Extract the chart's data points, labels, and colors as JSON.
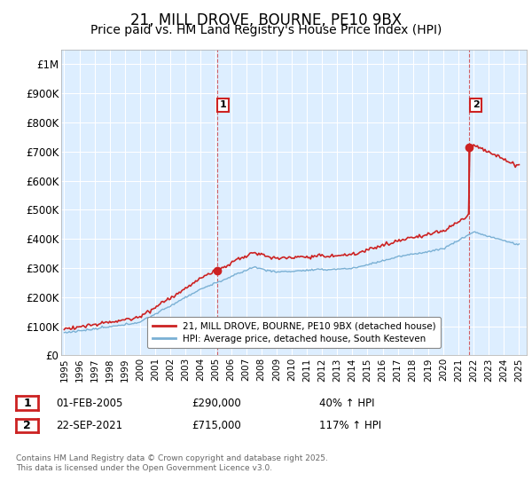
{
  "title": "21, MILL DROVE, BOURNE, PE10 9BX",
  "subtitle": "Price paid vs. HM Land Registry's House Price Index (HPI)",
  "title_fontsize": 12,
  "subtitle_fontsize": 10,
  "ylim": [
    0,
    1050000
  ],
  "yticks": [
    0,
    100000,
    200000,
    300000,
    400000,
    500000,
    600000,
    700000,
    800000,
    900000,
    1000000
  ],
  "ytick_labels": [
    "£0",
    "£100K",
    "£200K",
    "£300K",
    "£400K",
    "£500K",
    "£600K",
    "£700K",
    "£800K",
    "£900K",
    "£1M"
  ],
  "xlim_start": 1994.8,
  "xlim_end": 2025.5,
  "red_line_color": "#cc2222",
  "blue_line_color": "#7ab0d4",
  "sale1_year": 2005.08,
  "sale1_price": 290000,
  "sale2_year": 2021.72,
  "sale2_price": 715000,
  "legend_red_label": "21, MILL DROVE, BOURNE, PE10 9BX (detached house)",
  "legend_blue_label": "HPI: Average price, detached house, South Kesteven",
  "annotation1_date": "01-FEB-2005",
  "annotation1_price": "£290,000",
  "annotation1_hpi": "40% ↑ HPI",
  "annotation2_date": "22-SEP-2021",
  "annotation2_price": "£715,000",
  "annotation2_hpi": "117% ↑ HPI",
  "footer": "Contains HM Land Registry data © Crown copyright and database right 2025.\nThis data is licensed under the Open Government Licence v3.0.",
  "plot_bg_color": "#ddeeff",
  "grid_color": "#ffffff"
}
